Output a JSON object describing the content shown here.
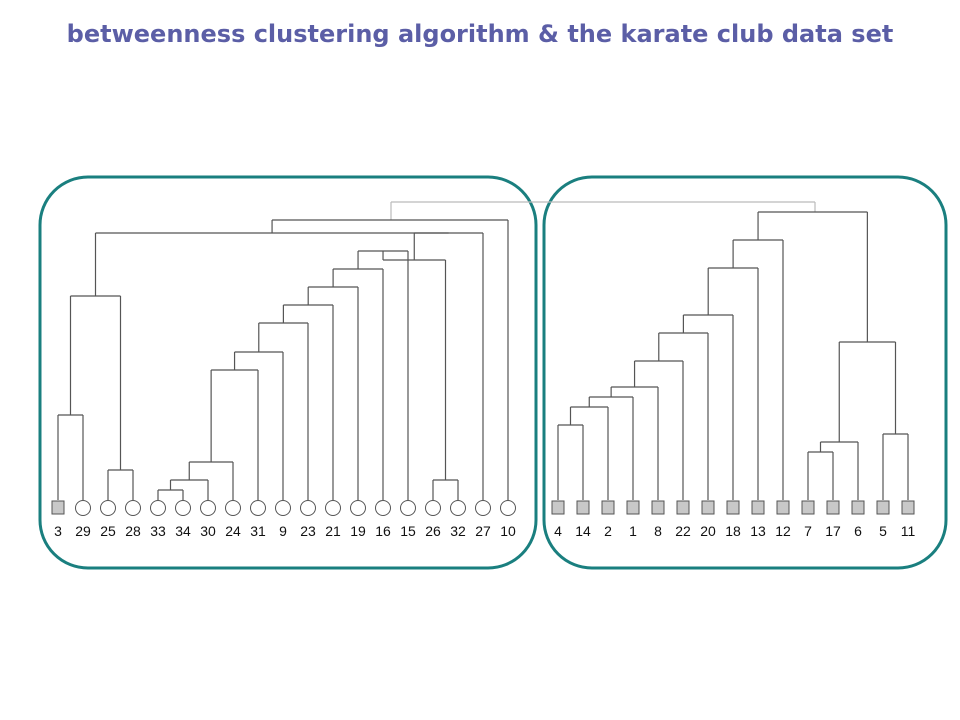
{
  "title": "betweenness clustering algorithm & the karate club data set",
  "colors": {
    "title": "#5b5ea6",
    "panel_border": "#1a7f7f",
    "tree_line": "#555555",
    "root_link": "#bbbbbb",
    "square_fill": "#c8c8c8"
  },
  "left_group": {
    "leaves": [
      {
        "label": "3",
        "shape": "square"
      },
      {
        "label": "29",
        "shape": "circle"
      },
      {
        "label": "25",
        "shape": "circle"
      },
      {
        "label": "28",
        "shape": "circle"
      },
      {
        "label": "33",
        "shape": "circle"
      },
      {
        "label": "34",
        "shape": "circle"
      },
      {
        "label": "30",
        "shape": "circle"
      },
      {
        "label": "24",
        "shape": "circle"
      },
      {
        "label": "31",
        "shape": "circle"
      },
      {
        "label": "9",
        "shape": "circle"
      },
      {
        "label": "23",
        "shape": "circle"
      },
      {
        "label": "21",
        "shape": "circle"
      },
      {
        "label": "19",
        "shape": "circle"
      },
      {
        "label": "16",
        "shape": "circle"
      },
      {
        "label": "15",
        "shape": "circle"
      },
      {
        "label": "26",
        "shape": "circle"
      },
      {
        "label": "32",
        "shape": "circle"
      },
      {
        "label": "27",
        "shape": "circle"
      },
      {
        "label": "10",
        "shape": "circle"
      }
    ]
  },
  "right_group": {
    "leaves": [
      {
        "label": "4",
        "shape": "square"
      },
      {
        "label": "14",
        "shape": "square"
      },
      {
        "label": "2",
        "shape": "square"
      },
      {
        "label": "1",
        "shape": "square"
      },
      {
        "label": "8",
        "shape": "square"
      },
      {
        "label": "22",
        "shape": "square"
      },
      {
        "label": "20",
        "shape": "square"
      },
      {
        "label": "18",
        "shape": "square"
      },
      {
        "label": "13",
        "shape": "square"
      },
      {
        "label": "12",
        "shape": "square"
      },
      {
        "label": "7",
        "shape": "square"
      },
      {
        "label": "17",
        "shape": "square"
      },
      {
        "label": "6",
        "shape": "square"
      },
      {
        "label": "5",
        "shape": "square"
      },
      {
        "label": "11",
        "shape": "square"
      }
    ]
  }
}
